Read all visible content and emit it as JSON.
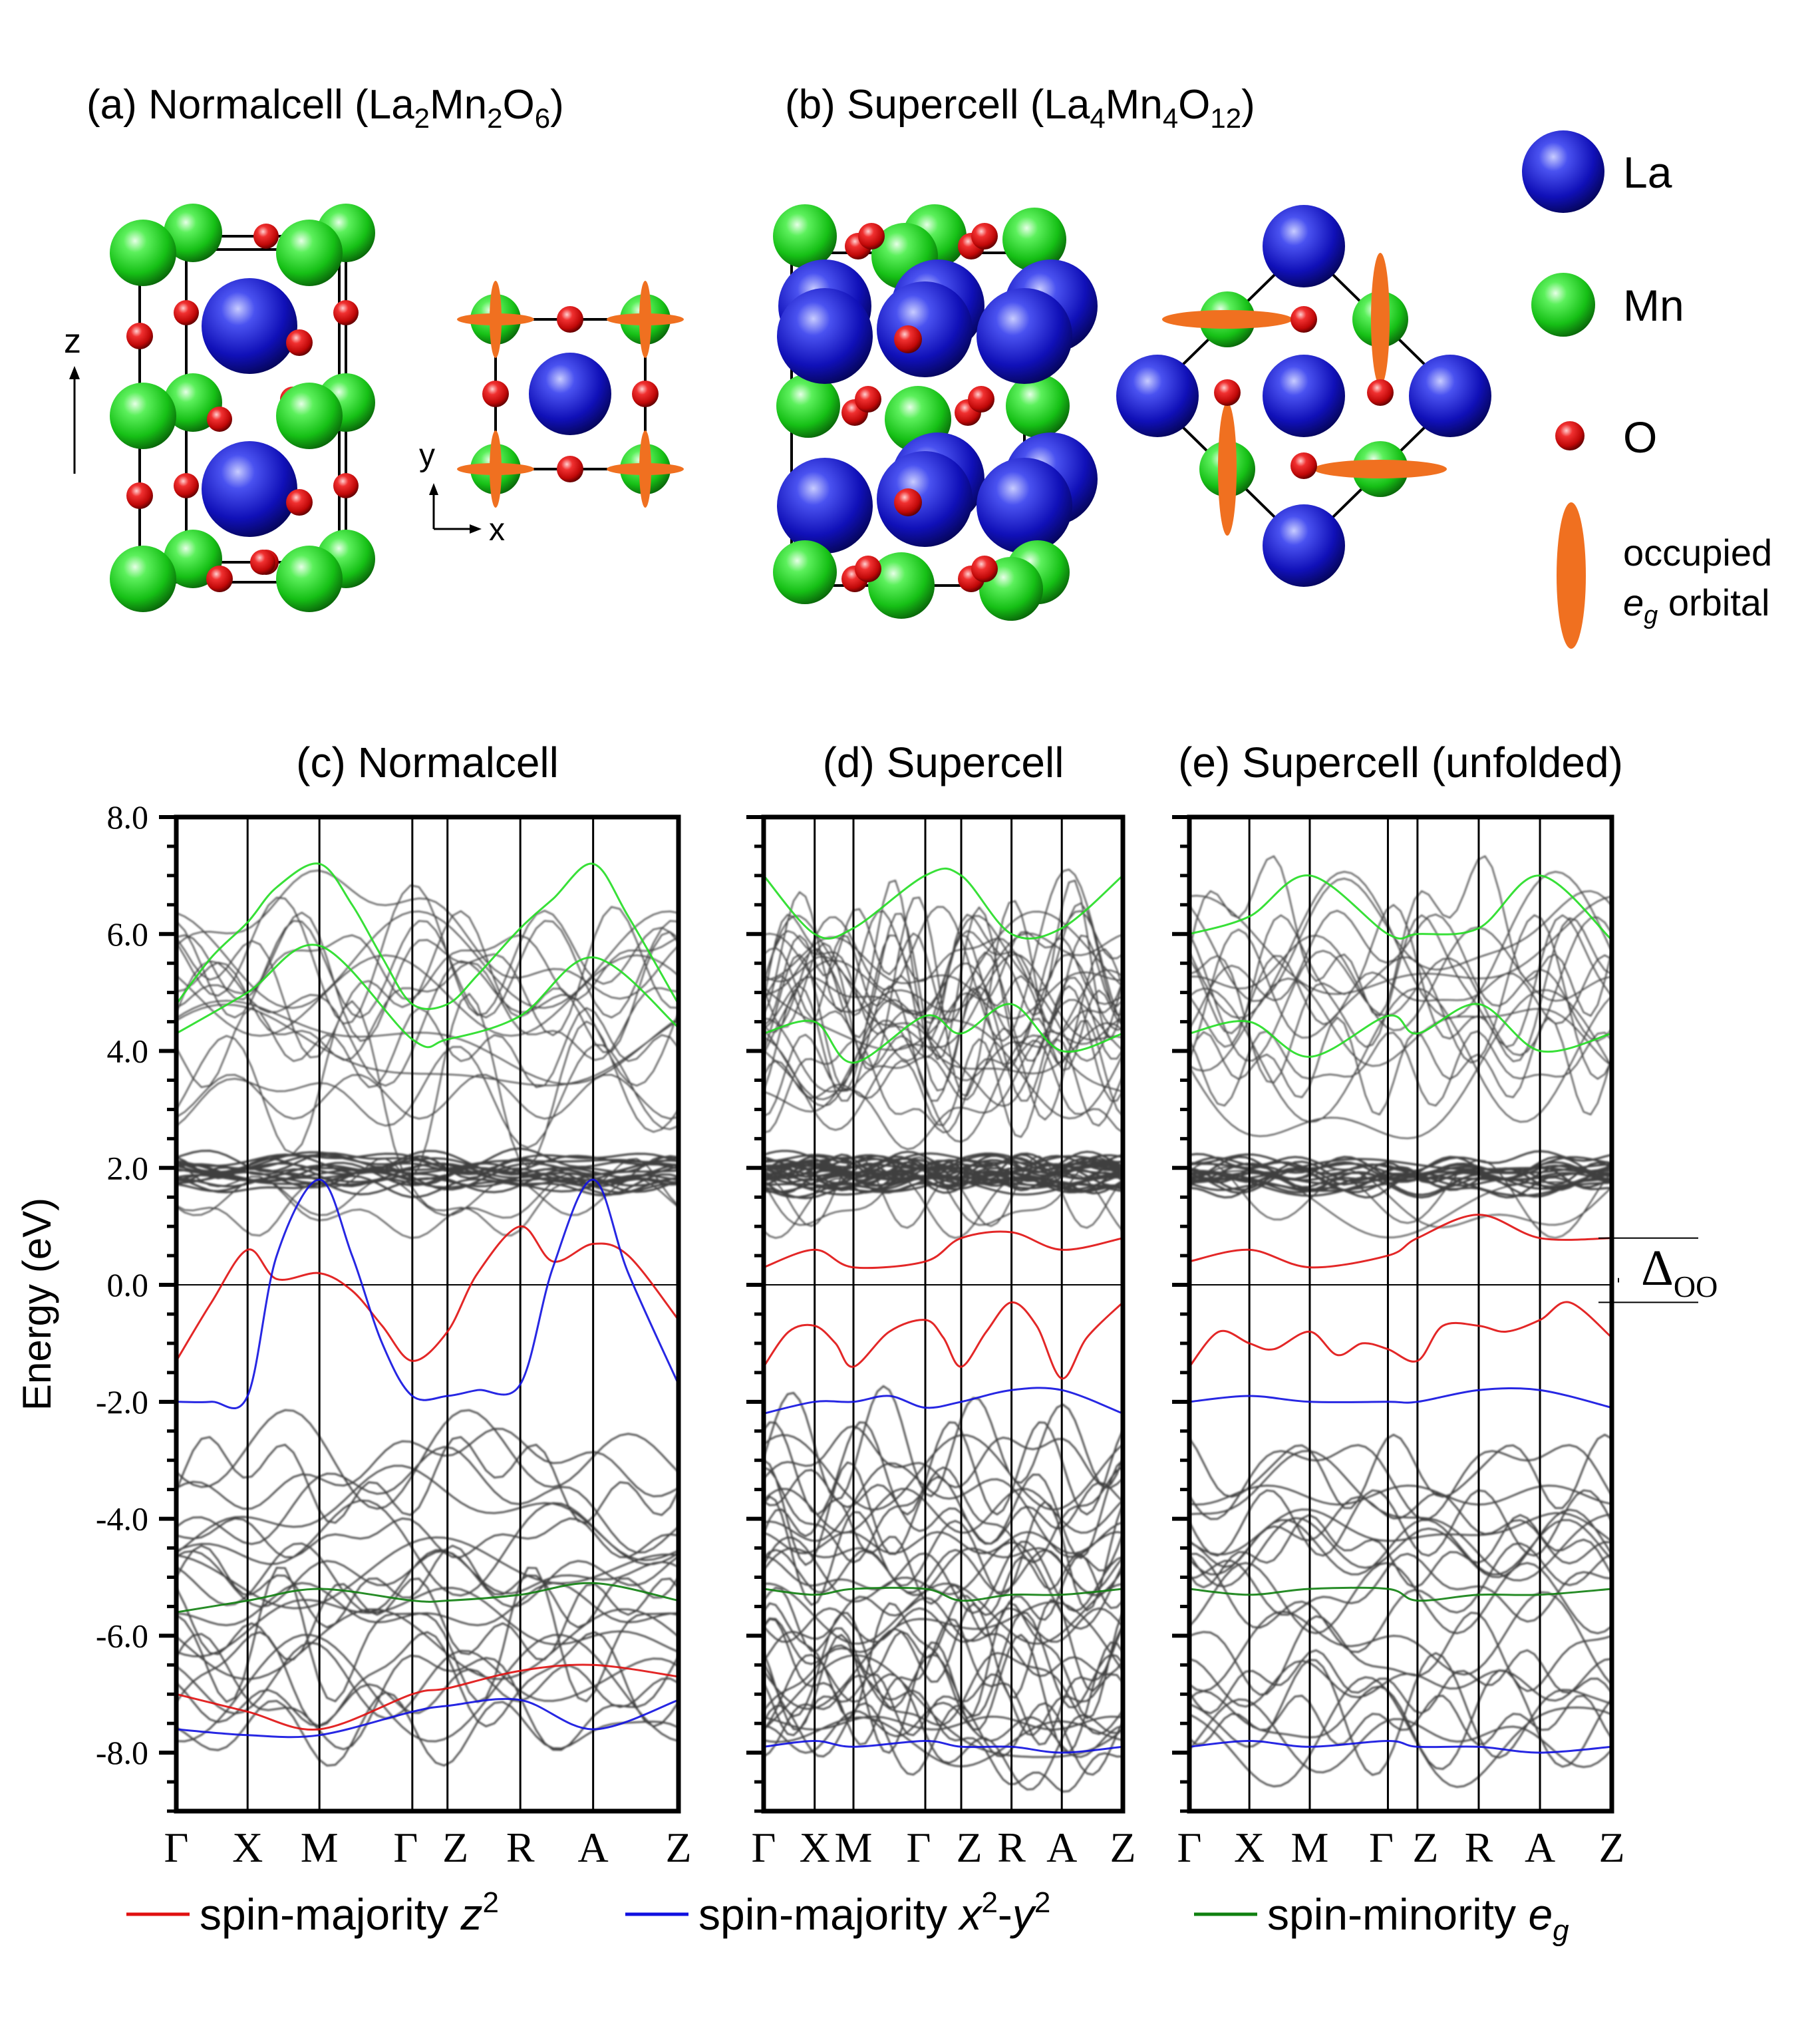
{
  "colors": {
    "la": "#1c1cc8",
    "mn": "#22d022",
    "o": "#e01010",
    "orbital": "#f07020",
    "band": "#000000",
    "spin_majority_z2": "#e01010",
    "spin_majority_x2y2": "#1010e0",
    "spin_minority_eg": "#108010",
    "band_green_upper": "#22dd22"
  },
  "panels_top": {
    "a": {
      "prefix": "(a) Normalcell (La",
      "s1": "2",
      "m1": "Mn",
      "s2": "2",
      "m2": "O",
      "s3": "6",
      "suffix": ")"
    },
    "b": {
      "prefix": "(b) Supercell (La",
      "s1": "4",
      "m1": "Mn",
      "s2": "4",
      "m2": "O",
      "s3": "12",
      "suffix": ")"
    },
    "axis_labels": {
      "z": "z",
      "y": "y",
      "x": "x"
    }
  },
  "legend_atoms": {
    "la": "La",
    "mn": "Mn",
    "o": "O",
    "orbital_line1": "occupied",
    "orbital_e": "e",
    "orbital_sub": "g",
    "orbital_rest": " orbital"
  },
  "legend_bottom": {
    "item1_text": "spin-majority ",
    "item1_var": "z",
    "item1_sup": "2",
    "item2_text": "spin-majority ",
    "item2_var_x": "x",
    "item2_sup1": "2",
    "item2_dash": "-",
    "item2_var_y": "y",
    "item2_sup2": "2",
    "item3_text": "spin-minority ",
    "item3_var": "e",
    "item3_sub": "g"
  },
  "chart_data": [
    {
      "type": "line",
      "title": "(c) Normalcell",
      "ylabel": "Energy (eV)",
      "ylim": [
        -9,
        8
      ],
      "yticks": [
        "8.0",
        "6.0",
        "4.0",
        "2.0",
        "0.0",
        "-2.0",
        "-4.0",
        "-6.0",
        "-8.0"
      ],
      "kpoints": [
        "Γ",
        "X",
        "M",
        "Γ",
        "Z",
        "R",
        "A",
        "Z"
      ],
      "kpos": [
        0,
        0.142,
        0.285,
        0.47,
        0.54,
        0.685,
        0.83,
        1.0
      ],
      "series": [
        {
          "name": "spin-majority z2 (red)",
          "x": [
            0,
            0.07,
            0.142,
            0.2,
            0.285,
            0.35,
            0.41,
            0.47,
            0.54,
            0.6,
            0.685,
            0.75,
            0.83,
            0.9,
            1.0
          ],
          "y": [
            -1.3,
            -0.3,
            0.6,
            0.1,
            0.2,
            -0.1,
            -0.7,
            -1.3,
            -0.8,
            0.2,
            1.0,
            0.4,
            0.7,
            0.5,
            -0.6
          ]
        },
        {
          "name": "spin-majority x2-y2 (blue)",
          "x": [
            0,
            0.07,
            0.142,
            0.2,
            0.285,
            0.35,
            0.41,
            0.47,
            0.54,
            0.6,
            0.685,
            0.75,
            0.83,
            0.9,
            1.0
          ],
          "y": [
            -2.0,
            -2.0,
            -1.9,
            0.5,
            1.8,
            0.5,
            -1.0,
            -1.9,
            -1.9,
            -1.8,
            -1.7,
            0.3,
            1.8,
            0.2,
            -1.7
          ]
        },
        {
          "name": "spin-minority eg (green, upper)",
          "x": [
            0,
            0.07,
            0.142,
            0.2,
            0.285,
            0.35,
            0.41,
            0.47,
            0.54,
            0.6,
            0.685,
            0.75,
            0.83,
            0.9,
            1.0
          ],
          "y": [
            4.8,
            5.6,
            6.2,
            6.8,
            7.2,
            6.5,
            5.6,
            4.8,
            4.8,
            5.3,
            6.1,
            6.6,
            7.2,
            6.3,
            4.8
          ]
        },
        {
          "name": "spin-minority eg (green, upper 2)",
          "x": [
            0,
            0.142,
            0.285,
            0.47,
            0.54,
            0.685,
            0.83,
            1.0
          ],
          "y": [
            4.3,
            5.0,
            5.8,
            4.2,
            4.2,
            4.6,
            5.6,
            4.4
          ]
        },
        {
          "name": "spin-minority eg (green, lower)",
          "x": [
            0,
            0.142,
            0.285,
            0.47,
            0.54,
            0.685,
            0.83,
            1.0
          ],
          "y": [
            -5.6,
            -5.4,
            -5.2,
            -5.4,
            -5.4,
            -5.3,
            -5.1,
            -5.4
          ]
        },
        {
          "name": "spin-majority z2 (red, lower)",
          "x": [
            0,
            0.142,
            0.285,
            0.47,
            0.54,
            0.685,
            0.83,
            1.0
          ],
          "y": [
            -7.0,
            -7.3,
            -7.6,
            -7.0,
            -6.9,
            -6.6,
            -6.5,
            -6.7
          ]
        },
        {
          "name": "spin-majority x2-y2 (blue, lower)",
          "x": [
            0,
            0.142,
            0.285,
            0.47,
            0.54,
            0.685,
            0.83,
            1.0
          ],
          "y": [
            -7.6,
            -7.7,
            -7.7,
            -7.3,
            -7.2,
            -7.1,
            -7.6,
            -7.1
          ]
        }
      ]
    },
    {
      "type": "line",
      "title": "(d) Supercell",
      "ylim": [
        -9,
        8
      ],
      "kpoints": [
        "Γ",
        "X",
        "M",
        "Γ",
        "Z",
        "R",
        "A",
        "Z"
      ],
      "kpos": [
        0,
        0.142,
        0.25,
        0.45,
        0.55,
        0.69,
        0.83,
        1.0
      ],
      "series": [
        {
          "name": "spin-majority z2 (red)",
          "x": [
            0,
            0.07,
            0.142,
            0.2,
            0.25,
            0.35,
            0.45,
            0.5,
            0.55,
            0.62,
            0.69,
            0.76,
            0.83,
            0.9,
            1.0
          ],
          "y": [
            -1.4,
            -0.8,
            -0.7,
            -1.0,
            -1.4,
            -0.8,
            -0.6,
            -0.9,
            -1.4,
            -0.8,
            -0.3,
            -0.7,
            -1.6,
            -0.9,
            -0.3
          ]
        },
        {
          "name": "spin-majority x2-y2 (blue)",
          "x": [
            0,
            0.142,
            0.25,
            0.35,
            0.45,
            0.55,
            0.69,
            0.83,
            1.0
          ],
          "y": [
            -2.2,
            -2.0,
            -2.0,
            -1.9,
            -2.1,
            -2.0,
            -1.8,
            -1.8,
            -2.2
          ]
        },
        {
          "name": "spin-majority z2 (red, unocc)",
          "x": [
            0,
            0.142,
            0.25,
            0.45,
            0.55,
            0.69,
            0.83,
            1.0
          ],
          "y": [
            0.3,
            0.6,
            0.3,
            0.4,
            0.8,
            0.9,
            0.6,
            0.8
          ]
        },
        {
          "name": "spin-minority eg (green, upper)",
          "x": [
            0,
            0.142,
            0.25,
            0.45,
            0.55,
            0.69,
            0.83,
            1.0
          ],
          "y": [
            7.0,
            6.0,
            6.1,
            7.0,
            7.0,
            6.0,
            6.1,
            7.0
          ]
        },
        {
          "name": "spin-minority eg (green, upper 2)",
          "x": [
            0,
            0.142,
            0.25,
            0.45,
            0.55,
            0.69,
            0.83,
            1.0
          ],
          "y": [
            4.3,
            4.5,
            3.8,
            4.6,
            4.3,
            4.8,
            4.0,
            4.3
          ]
        },
        {
          "name": "spin-minority eg (green, lower)",
          "x": [
            0,
            0.142,
            0.25,
            0.45,
            0.55,
            0.69,
            0.83,
            1.0
          ],
          "y": [
            -5.2,
            -5.3,
            -5.2,
            -5.2,
            -5.4,
            -5.3,
            -5.3,
            -5.2
          ]
        },
        {
          "name": "spin-majority x2-y2 (blue, lower)",
          "x": [
            0,
            0.142,
            0.25,
            0.45,
            0.55,
            0.69,
            0.83,
            1.0
          ],
          "y": [
            -7.9,
            -7.8,
            -7.9,
            -7.8,
            -7.9,
            -7.9,
            -8.0,
            -7.9
          ]
        }
      ]
    },
    {
      "type": "line",
      "title": "(e) Supercell (unfolded)",
      "ylim": [
        -9,
        8
      ],
      "kpoints": [
        "Γ",
        "X",
        "M",
        "Γ",
        "Z",
        "R",
        "A",
        "Z"
      ],
      "kpos": [
        0,
        0.142,
        0.285,
        0.47,
        0.54,
        0.685,
        0.83,
        1.0
      ],
      "annotation": "Δ",
      "annotation_sub": "OO",
      "gap_range": [
        -0.3,
        0.8
      ],
      "series": [
        {
          "name": "spin-majority z2 (red)",
          "x": [
            0,
            0.07,
            0.142,
            0.2,
            0.285,
            0.35,
            0.41,
            0.47,
            0.54,
            0.6,
            0.685,
            0.75,
            0.83,
            0.9,
            1.0
          ],
          "y": [
            -1.4,
            -0.8,
            -1.0,
            -1.1,
            -0.8,
            -1.2,
            -1.0,
            -1.1,
            -1.3,
            -0.7,
            -0.7,
            -0.8,
            -0.6,
            -0.3,
            -0.9
          ]
        },
        {
          "name": "spin-majority x2-y2 (blue)",
          "x": [
            0,
            0.142,
            0.285,
            0.47,
            0.54,
            0.685,
            0.83,
            1.0
          ],
          "y": [
            -2.0,
            -1.9,
            -2.0,
            -2.0,
            -2.0,
            -1.8,
            -1.8,
            -2.1
          ]
        },
        {
          "name": "spin-majority z2 (red, unocc)",
          "x": [
            0,
            0.142,
            0.285,
            0.47,
            0.54,
            0.685,
            0.83,
            1.0
          ],
          "y": [
            0.4,
            0.6,
            0.3,
            0.5,
            0.8,
            1.2,
            0.8,
            0.8
          ]
        },
        {
          "name": "spin-minority eg (green, upper)",
          "x": [
            0,
            0.142,
            0.285,
            0.47,
            0.54,
            0.685,
            0.83,
            1.0
          ],
          "y": [
            6.0,
            6.3,
            7.0,
            6.0,
            6.0,
            6.1,
            7.0,
            5.9
          ]
        },
        {
          "name": "spin-minority eg (green, upper 2)",
          "x": [
            0,
            0.142,
            0.285,
            0.47,
            0.54,
            0.685,
            0.83,
            1.0
          ],
          "y": [
            4.3,
            4.5,
            3.9,
            4.6,
            4.3,
            4.8,
            4.0,
            4.3
          ]
        },
        {
          "name": "spin-minority eg (green, lower)",
          "x": [
            0,
            0.142,
            0.285,
            0.47,
            0.54,
            0.685,
            0.83,
            1.0
          ],
          "y": [
            -5.2,
            -5.3,
            -5.2,
            -5.2,
            -5.4,
            -5.3,
            -5.3,
            -5.2
          ]
        },
        {
          "name": "spin-majority x2-y2 (blue, lower)",
          "x": [
            0,
            0.142,
            0.285,
            0.47,
            0.54,
            0.685,
            0.83,
            1.0
          ],
          "y": [
            -7.9,
            -7.8,
            -7.9,
            -7.8,
            -7.9,
            -7.9,
            -8.0,
            -7.9
          ]
        }
      ]
    }
  ]
}
